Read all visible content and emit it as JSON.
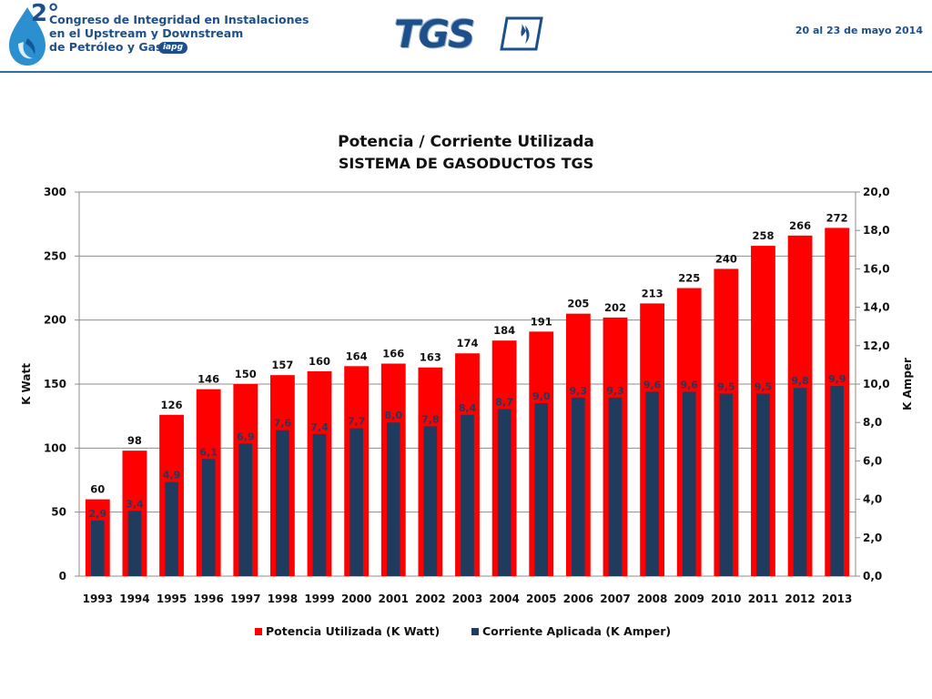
{
  "header": {
    "congress_number": "2°",
    "congress_lines": [
      "Congreso de Integridad en Instalaciones",
      "en el Upstream y Downstream",
      "de Petróleo y Gas"
    ],
    "iapg_badge": "iapg",
    "company_logo_text": "TGS",
    "date": "20 al 23 de mayo 2014"
  },
  "colors": {
    "brand_blue": "#1d4f8a",
    "power_series": "#ff0000",
    "current_series": "#1f3b5e"
  },
  "chart_data": {
    "type": "bar",
    "title": "Potencia / Corriente Utilizada",
    "subtitle": "SISTEMA DE GASODUCTOS TGS",
    "categories": [
      "1993",
      "1994",
      "1995",
      "1996",
      "1997",
      "1998",
      "1999",
      "2000",
      "2001",
      "2002",
      "2003",
      "2004",
      "2005",
      "2006",
      "2007",
      "2008",
      "2009",
      "2010",
      "2011",
      "2012",
      "2013"
    ],
    "series": [
      {
        "name": "Potencia Utilizada (K Watt)",
        "axis": "left",
        "color": "#ff0000",
        "values": [
          60,
          98,
          126,
          146,
          150,
          157,
          160,
          164,
          166,
          163,
          174,
          184,
          191,
          205,
          202,
          213,
          225,
          240,
          258,
          266,
          272
        ],
        "labels": [
          "60",
          "98",
          "126",
          "146",
          "150",
          "157",
          "160",
          "164",
          "166",
          "163",
          "174",
          "184",
          "191",
          "205",
          "202",
          "213",
          "225",
          "240",
          "258",
          "266",
          "272"
        ]
      },
      {
        "name": "Corriente Aplicada (K Amper)",
        "axis": "right",
        "color": "#1f3b5e",
        "values": [
          2.9,
          3.4,
          4.9,
          6.1,
          6.9,
          7.6,
          7.4,
          7.7,
          8.0,
          7.8,
          8.4,
          8.7,
          9.0,
          9.3,
          9.3,
          9.6,
          9.6,
          9.5,
          9.5,
          9.8,
          9.9
        ],
        "labels": [
          "2,9",
          "3,4",
          "4,9",
          "6,1",
          "6,9",
          "7,6",
          "7,4",
          "7,7",
          "8,0",
          "7,8",
          "8,4",
          "8,7",
          "9,0",
          "9,3",
          "9,3",
          "9,6",
          "9,6",
          "9,5",
          "9,5",
          "9,8",
          "9,9"
        ]
      }
    ],
    "ylabel": "K Watt",
    "ylim": [
      0,
      300
    ],
    "yticks": [
      "0",
      "50",
      "100",
      "150",
      "200",
      "250",
      "300"
    ],
    "y2label": "K Amper",
    "y2lim": [
      0,
      20
    ],
    "y2ticks": [
      "0,0",
      "2,0",
      "4,0",
      "6,0",
      "8,0",
      "10,0",
      "12,0",
      "14,0",
      "16,0",
      "18,0",
      "20,0"
    ],
    "grid": true,
    "legend_position": "bottom"
  }
}
